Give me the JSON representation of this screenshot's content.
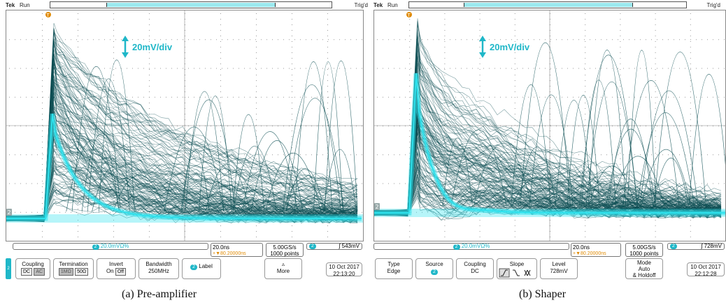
{
  "colors": {
    "accent": "#1fb7c8",
    "trace": "#0b4d52",
    "trace_core": "#2fe3ee",
    "trigger": "#e08a00"
  },
  "panel_a": {
    "brand": "Tek",
    "run": "Run",
    "trig_status": "Trig'd",
    "scale_annotation": "20mV/div",
    "ch_marker": "2",
    "trigger_marker": "T",
    "status": {
      "vertical": "20.0mV",
      "vertical_suffix": "Ω%",
      "horiz": "20.0ns",
      "delay": "+▼80.20000ns",
      "sample_rate": "5.00GS/s",
      "points": "1000 points",
      "trig_level": "543mV"
    },
    "menu": {
      "coupling": "Coupling",
      "coupling_dc": "DC",
      "coupling_ac": "AC",
      "termination": "Termination",
      "term_1m": "1MΩ",
      "term_50": "50Ω",
      "invert": "Invert",
      "invert_on": "On",
      "invert_off": "Off",
      "bandwidth": "Bandwidth",
      "bandwidth_val": "250MHz",
      "label": "Label",
      "more": "More",
      "date": "10 Oct  2017",
      "time": "22:13:20"
    },
    "caption": "(a) Pre-amplifier"
  },
  "panel_b": {
    "brand": "Tek",
    "run": "Run",
    "trig_status": "Trig'd",
    "scale_annotation": "20mV/div",
    "ch_marker": "2",
    "trigger_marker": "T",
    "status": {
      "vertical": "20.0mV",
      "vertical_suffix": "Ω%",
      "horiz": "20.0ns",
      "delay": "+▼80.20000ns",
      "sample_rate": "5.00GS/s",
      "points": "1000 points",
      "trig_level": "728mV"
    },
    "menu": {
      "type": "Type",
      "type_val": "Edge",
      "source": "Source",
      "coupling": "Coupling",
      "coupling_val": "DC",
      "slope": "Slope",
      "level": "Level",
      "level_val": "728mV",
      "mode": "Mode",
      "mode_val1": "Auto",
      "mode_val2": "& Holdoff",
      "date": "10 Oct  2017",
      "time": "22:12:28"
    },
    "caption": "(b) Shaper"
  }
}
